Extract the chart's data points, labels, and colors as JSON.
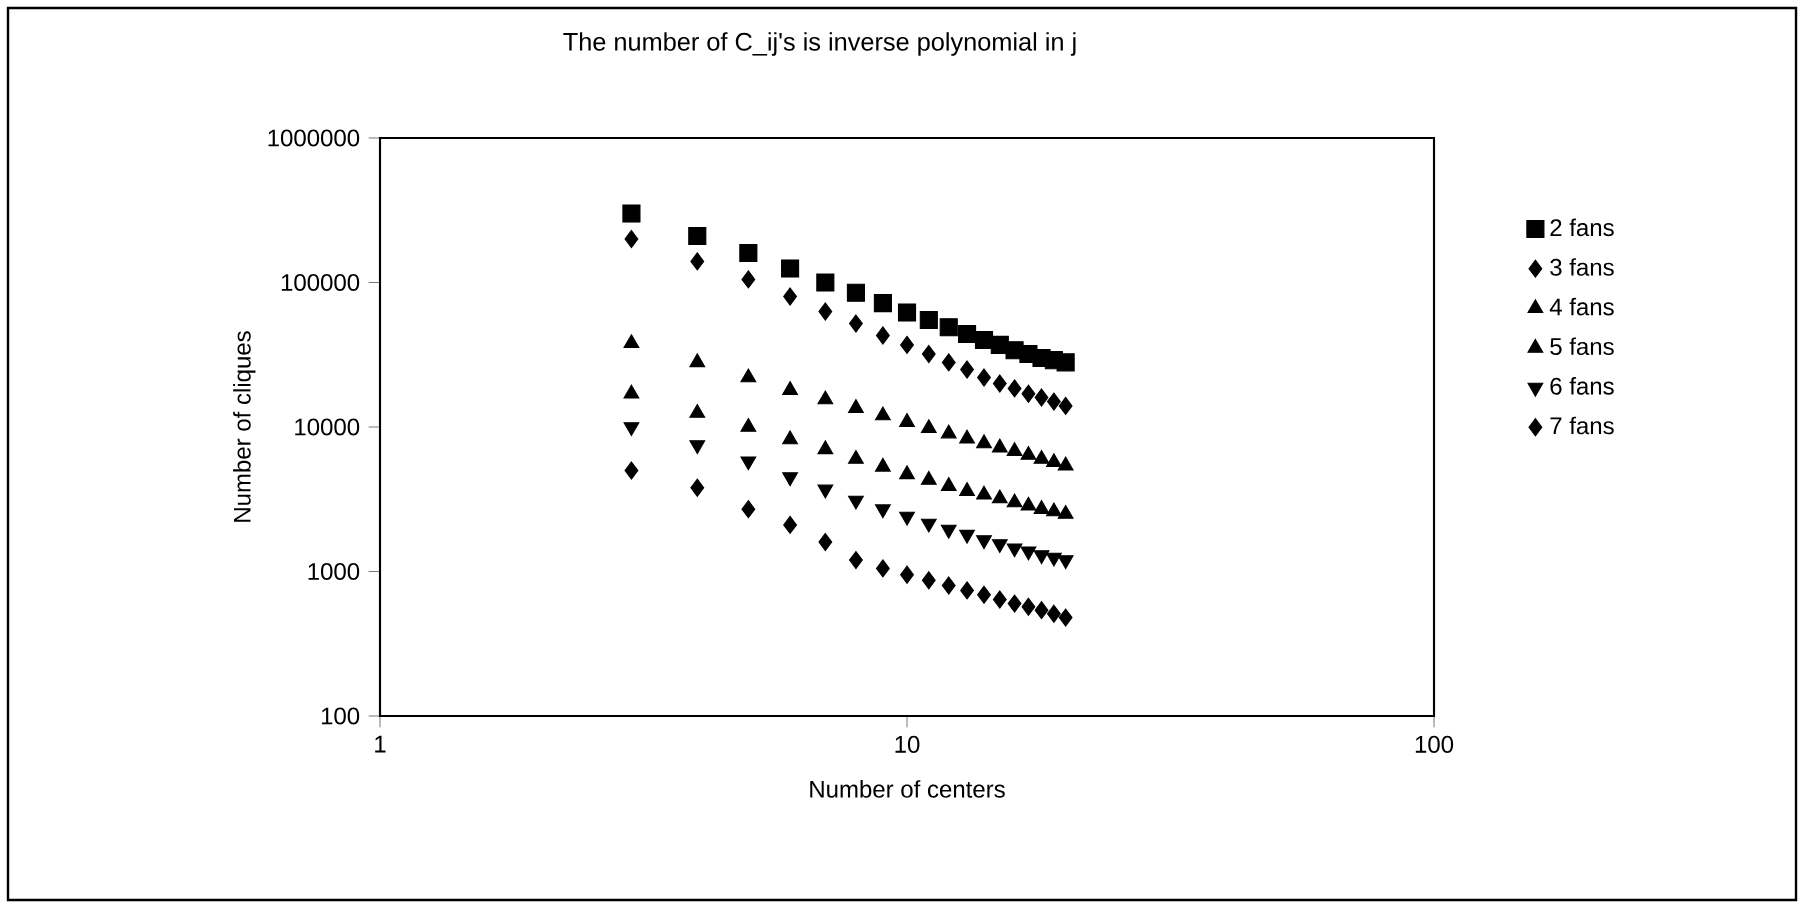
{
  "chart_data": {
    "type": "scatter",
    "title": "The number of C_ij's is inverse polynomial in j",
    "xlabel": "Number of centers",
    "ylabel": "Number of cliques",
    "log": "xy",
    "legend": "right",
    "xlim": [
      1,
      100
    ],
    "xticks": [
      1,
      10,
      100
    ],
    "ylim": [
      100,
      1000000
    ],
    "yticks": [
      100,
      1000,
      10000,
      100000,
      1000000
    ],
    "x": [
      3,
      4,
      5,
      6,
      7,
      8,
      9,
      10,
      11,
      12,
      13,
      14,
      15,
      16,
      17,
      18,
      19,
      20
    ],
    "series": [
      {
        "name": "2 fans",
        "color": "#000000",
        "marker": "square",
        "values": [
          300000,
          210000,
          160000,
          125000,
          100000,
          85000,
          72000,
          62000,
          55000,
          49000,
          44000,
          40000,
          37000,
          34000,
          32000,
          30000,
          29000,
          28000
        ]
      },
      {
        "name": "3 fans",
        "color": "#000000",
        "marker": "diamond",
        "values": [
          200000,
          140000,
          105000,
          80000,
          63000,
          52000,
          43000,
          37000,
          32000,
          28000,
          25000,
          22000,
          20000,
          18500,
          17000,
          16000,
          15000,
          14000
        ]
      },
      {
        "name": "4 fans",
        "color": "#000000",
        "marker": "triangle",
        "values": [
          38000,
          28000,
          22000,
          18000,
          15500,
          13500,
          12000,
          10800,
          9800,
          9000,
          8300,
          7700,
          7200,
          6800,
          6400,
          6000,
          5700,
          5400
        ]
      },
      {
        "name": "5 fans",
        "color": "#000000",
        "marker": "triangle",
        "values": [
          17000,
          12500,
          10000,
          8200,
          7000,
          6000,
          5300,
          4700,
          4300,
          3900,
          3600,
          3400,
          3200,
          3000,
          2850,
          2700,
          2600,
          2500
        ]
      },
      {
        "name": "6 fans",
        "color": "#000000",
        "marker": "triangle-down",
        "values": [
          10000,
          7500,
          5800,
          4500,
          3700,
          3100,
          2700,
          2400,
          2150,
          1950,
          1800,
          1650,
          1550,
          1450,
          1380,
          1300,
          1250,
          1200
        ]
      },
      {
        "name": "7 fans",
        "color": "#000000",
        "marker": "diamond",
        "values": [
          5000,
          3800,
          2700,
          2100,
          1600,
          1200,
          1050,
          950,
          870,
          800,
          740,
          690,
          640,
          600,
          570,
          540,
          510,
          480
        ]
      }
    ]
  }
}
